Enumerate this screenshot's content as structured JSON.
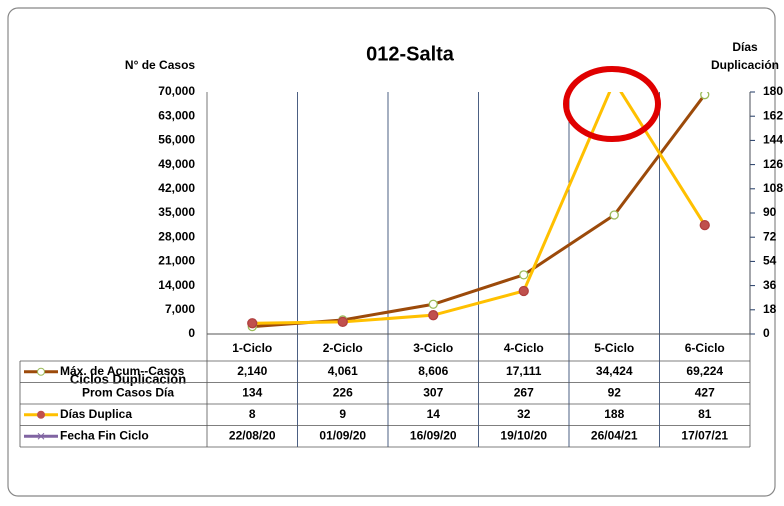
{
  "chart_data": {
    "type": "line",
    "title": "012-Salta",
    "y_label": "N° de Casos",
    "y2_label": "Días Duplicación",
    "table_header": "Ciclos Duplicación",
    "categories": [
      "1-Ciclo",
      "2-Ciclo",
      "3-Ciclo",
      "4-Ciclo",
      "5-Ciclo",
      "6-Ciclo"
    ],
    "ylim": [
      0,
      70000
    ],
    "yticks": [
      0,
      {
        "value": 7000,
        "label": "7,000"
      },
      {
        "value": 14000,
        "label": "14,000"
      },
      {
        "value": 21000,
        "label": "21,000"
      },
      {
        "value": 28000,
        "label": "28,000"
      },
      {
        "value": 35000,
        "label": "35,000"
      },
      {
        "value": 42000,
        "label": "42,000"
      },
      {
        "value": 49000,
        "label": "49,000"
      },
      {
        "value": 56000,
        "label": "56,000"
      },
      {
        "value": 63000,
        "label": "63,000"
      },
      {
        "value": 70000,
        "label": "70,000"
      }
    ],
    "y2lim": [
      0,
      180
    ],
    "y2ticks": [
      0,
      18,
      36,
      54,
      72,
      90,
      108,
      126,
      144,
      162,
      180
    ],
    "series": [
      {
        "name": "Máx. de Acum--Casos",
        "color": "#9c4a0a",
        "values": [
          2140,
          4061,
          8606,
          17111,
          34424,
          69224
        ],
        "value_labels": [
          "2,140",
          "4,061",
          "8,606",
          "17,111",
          "34,424",
          "69,224"
        ]
      },
      {
        "name": "Prom Casos Día",
        "values": [
          134,
          226,
          307,
          267,
          92,
          427
        ]
      },
      {
        "name": "Días Duplica",
        "color": "#ffc000",
        "axis": "y2",
        "values": [
          8,
          9,
          14,
          32,
          188,
          81
        ]
      },
      {
        "name": "Fecha Fin Ciclo",
        "color": "#8064a2",
        "values": [
          "22/08/20",
          "01/09/20",
          "16/09/20",
          "19/10/20",
          "26/04/21",
          "17/07/21"
        ]
      }
    ]
  }
}
